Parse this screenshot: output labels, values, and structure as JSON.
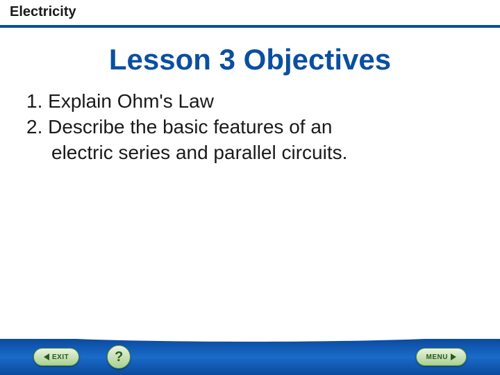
{
  "colors": {
    "header_text": "#1a1a1a",
    "header_rule": "#0a4fa0",
    "title_text": "#0a4fa0",
    "body_text": "#1a1a1a",
    "footer_grad_top": "#0a4a9e",
    "footer_grad_mid": "#1a6bc9",
    "pill_text": "#2a5a1a"
  },
  "header": {
    "title": "Electricity"
  },
  "main": {
    "title": "Lesson 3 Objectives"
  },
  "objectives": {
    "items": [
      {
        "num": "1.",
        "text": "Explain Ohm's Law"
      },
      {
        "num": "2.",
        "text": "Describe the basic features of an electric series and parallel circuits."
      }
    ]
  },
  "footer": {
    "exit_label": "EXIT",
    "help_label": "?",
    "menu_label": "MENU"
  }
}
